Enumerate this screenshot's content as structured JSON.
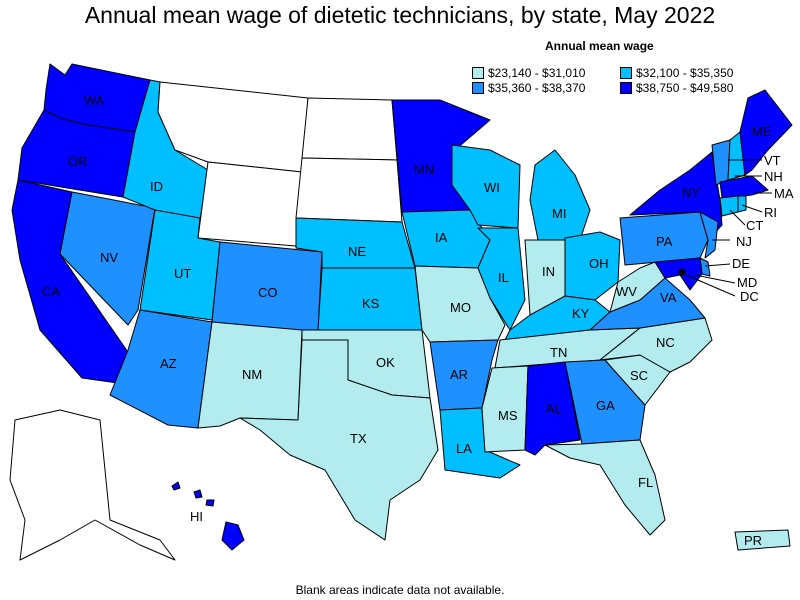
{
  "title": "Annual mean wage of dietetic technicians, by state, May 2022",
  "footnote": "Blank areas indicate data not available.",
  "legend": {
    "title": "Annual mean wage",
    "items": [
      {
        "label": "$23,140 - $31,010",
        "color": "#b2ecee"
      },
      {
        "label": "$32,100 - $35,350",
        "color": "#00bfff"
      },
      {
        "label": "$35,360 - $38,370",
        "color": "#1e90ff"
      },
      {
        "label": "$38,750 - $49,580",
        "color": "#0000ff"
      }
    ]
  },
  "colors": {
    "nodata": "#ffffff",
    "light": "#b2ecee",
    "sky": "#00bfff",
    "mid": "#1e90ff",
    "dark": "#0000ff"
  },
  "state_labels": {
    "WA": "WA",
    "OR": "OR",
    "CA": "CA",
    "NV": "NV",
    "ID": "ID",
    "UT": "UT",
    "AZ": "AZ",
    "CO": "CO",
    "NM": "NM",
    "NE": "NE",
    "KS": "KS",
    "OK": "OK",
    "TX": "TX",
    "MN": "MN",
    "IA": "IA",
    "MO": "MO",
    "AR": "AR",
    "LA": "LA",
    "WI": "WI",
    "IL": "IL",
    "MS": "MS",
    "MI": "MI",
    "IN": "IN",
    "KY": "KY",
    "TN": "TN",
    "AL": "AL",
    "OH": "OH",
    "GA": "GA",
    "FL": "FL",
    "SC": "SC",
    "NC": "NC",
    "VA": "VA",
    "WV": "WV",
    "PA": "PA",
    "NY": "NY",
    "ME": "ME",
    "VT": "VT",
    "NH": "NH",
    "MA": "MA",
    "RI": "RI",
    "CT": "CT",
    "NJ": "NJ",
    "DE": "DE",
    "MD": "MD",
    "DC": "DC",
    "HI": "HI",
    "PR": "PR"
  }
}
